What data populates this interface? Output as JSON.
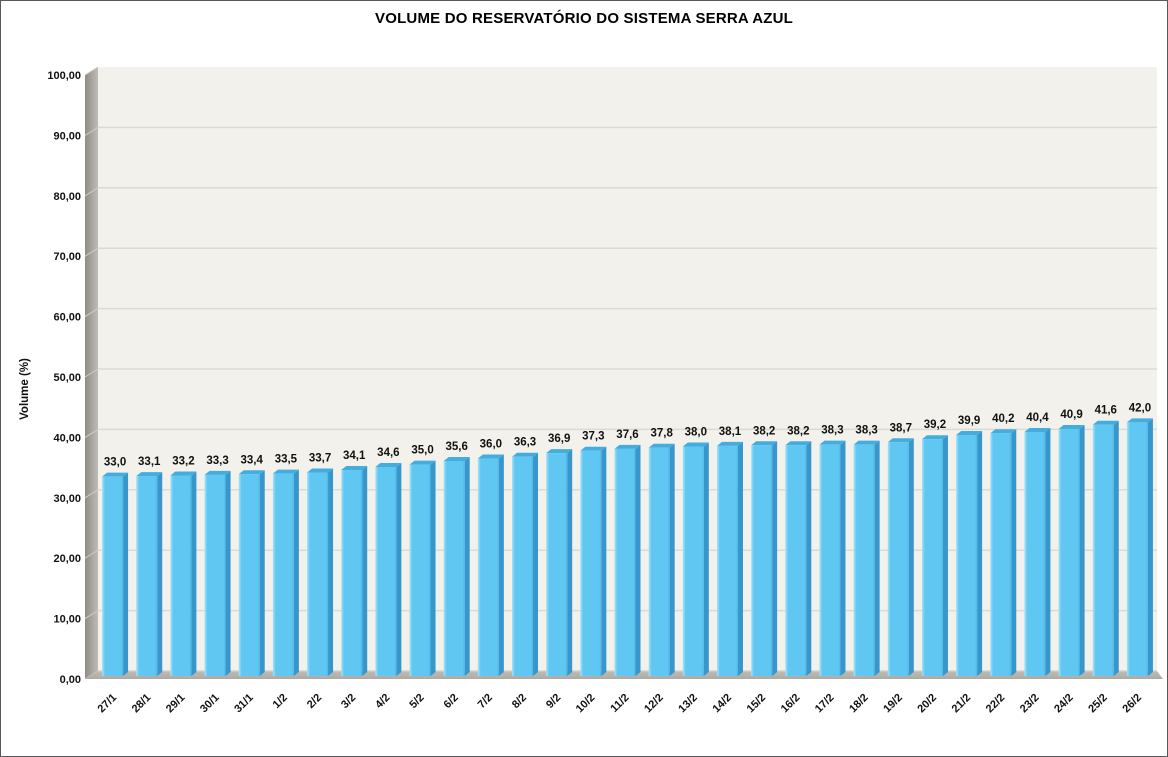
{
  "chart_data": {
    "type": "bar",
    "style": "3d-column",
    "title": "VOLUME DO RESERVATÓRIO DO SISTEMA SERRA AZUL",
    "ylabel": "Volume (%)",
    "xlabel": "",
    "ylim": [
      0,
      100
    ],
    "ytick_step": 10,
    "ytick_labels": [
      "100,00",
      "90,00",
      "80,00",
      "70,00",
      "60,00",
      "50,00",
      "40,00",
      "30,00",
      "20,00",
      "10,00",
      "0,00"
    ],
    "grid": true,
    "legend": "none",
    "categories": [
      "27/1",
      "28/1",
      "29/1",
      "30/1",
      "31/1",
      "1/2",
      "2/2",
      "3/2",
      "4/2",
      "5/2",
      "6/2",
      "7/2",
      "8/2",
      "9/2",
      "10/2",
      "11/2",
      "12/2",
      "13/2",
      "14/2",
      "15/2",
      "16/2",
      "17/2",
      "18/2",
      "19/2",
      "20/2",
      "21/2",
      "22/2",
      "23/2",
      "24/2",
      "25/2",
      "26/2"
    ],
    "values": [
      33.0,
      33.1,
      33.2,
      33.3,
      33.4,
      33.5,
      33.7,
      34.1,
      34.6,
      35.0,
      35.6,
      36.0,
      36.3,
      36.9,
      37.3,
      37.6,
      37.8,
      38.0,
      38.1,
      38.2,
      38.2,
      38.3,
      38.3,
      38.7,
      39.2,
      39.9,
      40.2,
      40.4,
      40.9,
      41.6,
      42.0
    ],
    "value_labels": [
      "33,0",
      "33,1",
      "33,2",
      "33,3",
      "33,4",
      "33,5",
      "33,7",
      "34,1",
      "34,6",
      "35,0",
      "35,6",
      "36,0",
      "36,3",
      "36,9",
      "37,3",
      "37,6",
      "37,8",
      "38,0",
      "38,1",
      "38,2",
      "38,2",
      "38,3",
      "38,3",
      "38,7",
      "39,2",
      "39,9",
      "40,2",
      "40,4",
      "40,9",
      "41,6",
      "42,0"
    ],
    "colors": {
      "bar_face": "#5FC7F2",
      "bar_face_highlight": "#A6E3FA",
      "bar_side": "#3796CC",
      "bar_top": "#42ADDE",
      "back_wall": "#F2F1EB",
      "side_wall_dark": "#8E8C84",
      "side_wall_light": "#BEBCB4",
      "floor": "#ACAAA2",
      "gridline": "#DCDAD2",
      "text": "#111111",
      "background": "#FFFFFF"
    }
  }
}
